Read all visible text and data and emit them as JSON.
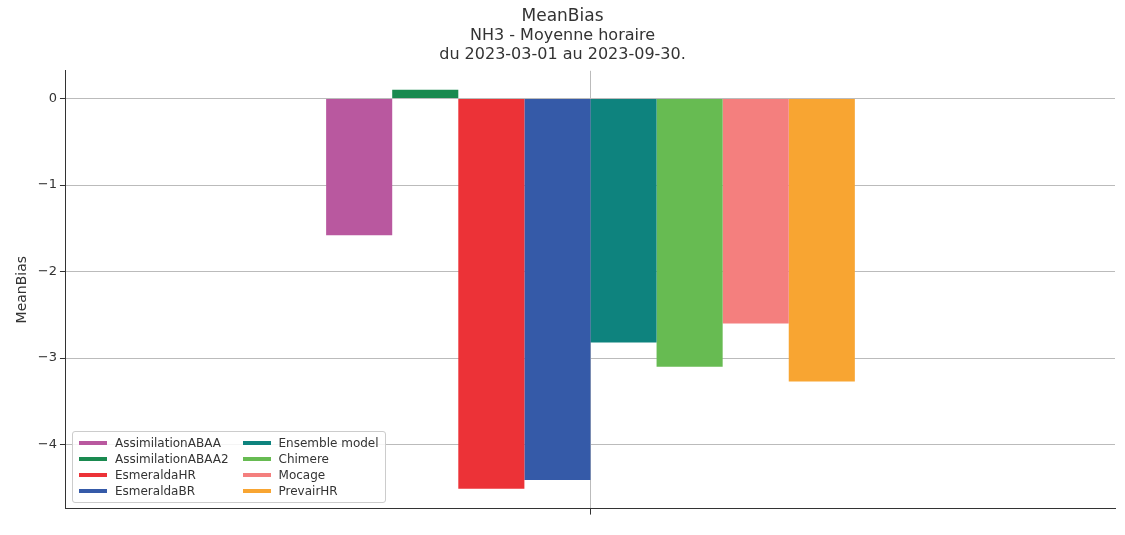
{
  "chart_data": {
    "type": "bar",
    "title": "MeanBias",
    "subtitle": "NH3 - Moyenne horaire\ndu 2023-03-01 au 2023-09-30.",
    "ylabel": "MeanBias",
    "categories": [
      null
    ],
    "series": [
      {
        "name": "AssimilationABAA",
        "color": "#b9589f",
        "values": [
          -1.58
        ]
      },
      {
        "name": "AssimilationABAA2",
        "color": "#1a8a50",
        "values": [
          0.1
        ]
      },
      {
        "name": "EsmeraldaHR",
        "color": "#ec3237",
        "values": [
          -4.51
        ]
      },
      {
        "name": "EsmeraldaBR",
        "color": "#355aa8",
        "values": [
          -4.41
        ]
      },
      {
        "name": "Ensemble model",
        "color": "#0e837e",
        "values": [
          -2.82
        ]
      },
      {
        "name": "Chimere",
        "color": "#67bb52",
        "values": [
          -3.1
        ]
      },
      {
        "name": "Mocage",
        "color": "#f47f7e",
        "values": [
          -2.6
        ]
      },
      {
        "name": "PrevairHR",
        "color": "#f8a532",
        "values": [
          -3.27
        ]
      }
    ],
    "ylim": [
      -4.74,
      0.32
    ],
    "yticks": [
      -4,
      -3,
      -2,
      -1,
      0
    ],
    "grid": true,
    "legend": "bottom left"
  }
}
